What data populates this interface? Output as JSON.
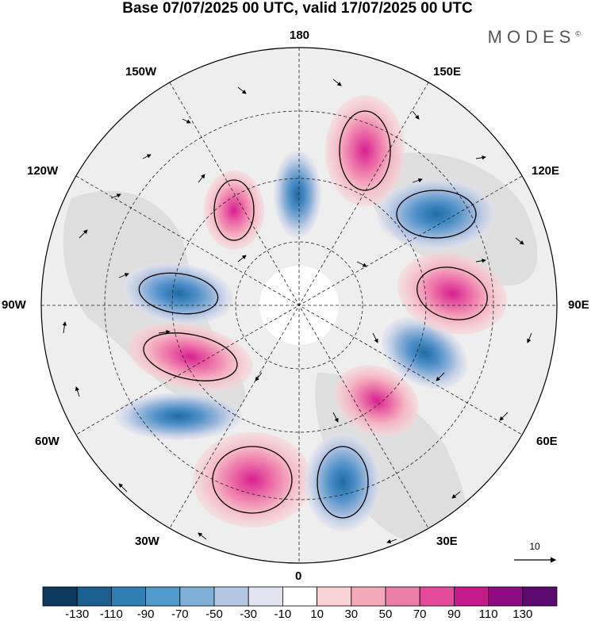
{
  "header": {
    "title": "Base 07/07/2025 00 UTC, valid 17/07/2025 00 UTC",
    "brand": "MODES"
  },
  "map": {
    "projection": "north-polar-stereographic",
    "longitude_labels": {
      "top": "180",
      "bottom": "0",
      "left": "90W",
      "right": "90E",
      "upper_left_1": "150W",
      "upper_left_2": "120W",
      "lower_left_1": "60W",
      "lower_left_2": "30W",
      "upper_right_1": "150E",
      "upper_right_2": "120E",
      "lower_right_1": "60E",
      "lower_right_2": "30E"
    },
    "reference_vector_label": "10",
    "anomaly_centers": [
      {
        "sign": "positive",
        "near": "30W"
      },
      {
        "sign": "negative",
        "near": "30E"
      },
      {
        "sign": "positive",
        "near": "45E"
      },
      {
        "sign": "negative",
        "near": "75E"
      },
      {
        "sign": "positive",
        "near": "100E"
      },
      {
        "sign": "negative",
        "near": "125E"
      },
      {
        "sign": "positive",
        "near": "160E"
      },
      {
        "sign": "negative",
        "near": "175W"
      },
      {
        "sign": "positive",
        "near": "150W"
      },
      {
        "sign": "negative",
        "near": "100W"
      },
      {
        "sign": "positive",
        "near": "75W"
      },
      {
        "sign": "negative",
        "near": "60W"
      }
    ]
  },
  "colorbar": {
    "ticks": [
      "-130",
      "-110",
      "-90",
      "-70",
      "-50",
      "-30",
      "-10",
      "10",
      "30",
      "50",
      "70",
      "90",
      "110",
      "130"
    ],
    "colors": [
      "#0d3a5c",
      "#1a5f8f",
      "#2f7fb5",
      "#4f9acb",
      "#7fb0d8",
      "#b3c6e2",
      "#e2e3f1",
      "#ffffff",
      "#f8d3d6",
      "#f3a9b8",
      "#ec7fa7",
      "#e34a99",
      "#c41a8a",
      "#8f0a80",
      "#5a0a6f"
    ]
  }
}
